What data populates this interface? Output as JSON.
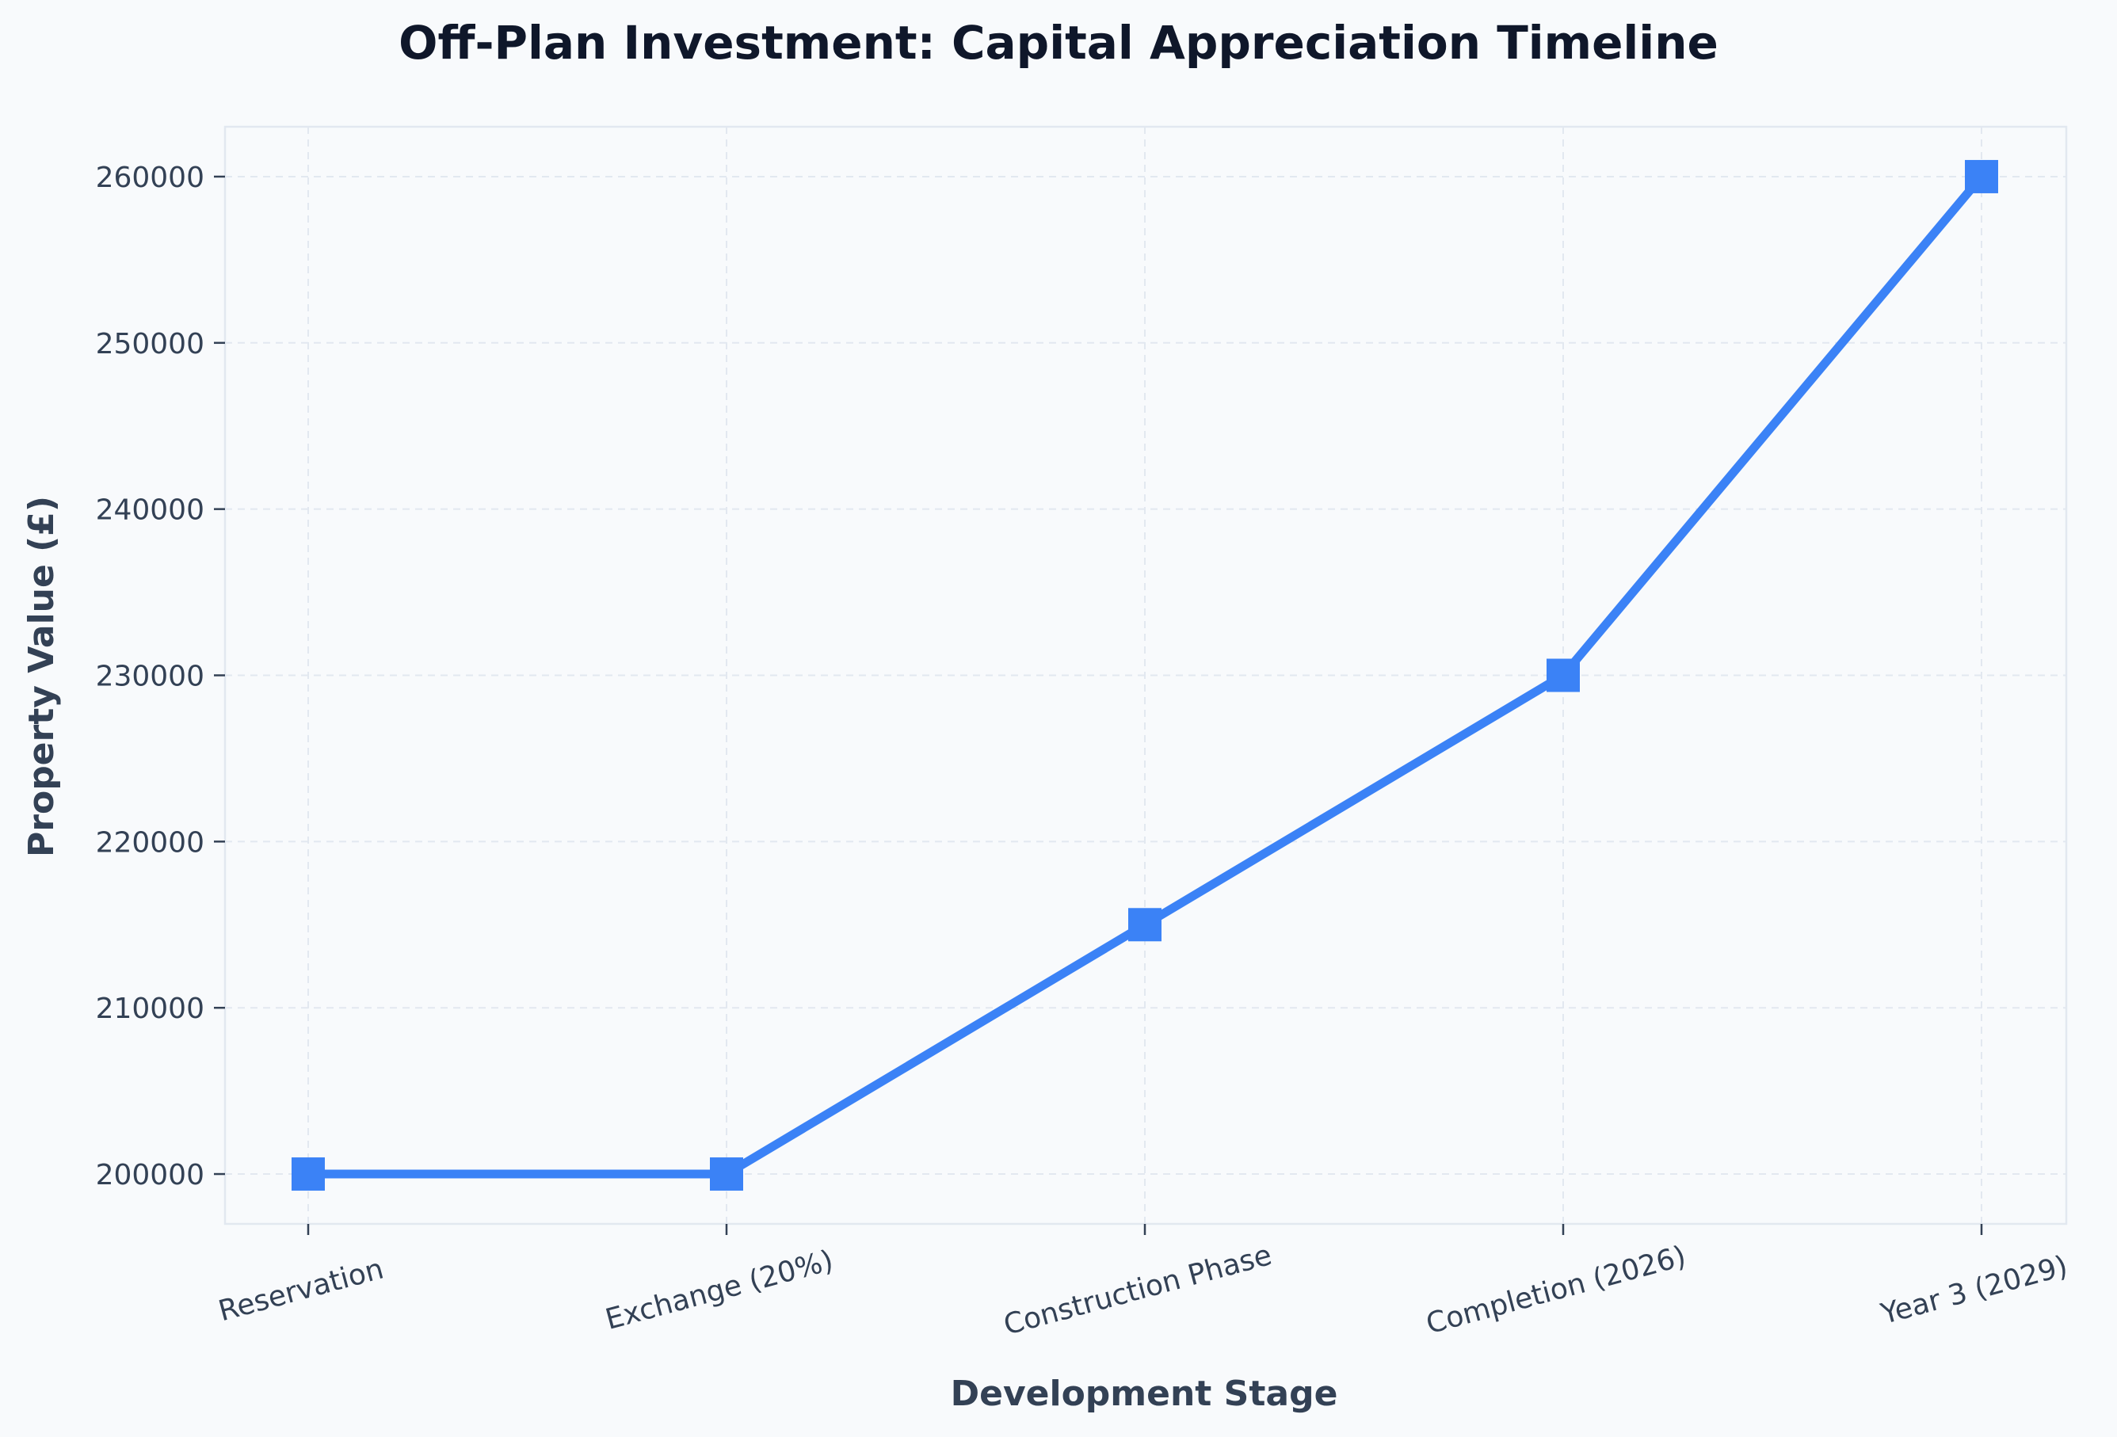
{
  "chart_data": {
    "type": "line",
    "title": "Off-Plan Investment: Capital Appreciation Timeline",
    "xlabel": "Development Stage",
    "ylabel": "Property Value (£)",
    "categories": [
      "Reservation",
      "Exchange (20%)",
      "Construction Phase",
      "Completion (2026)",
      "Year 3 (2029)"
    ],
    "values": [
      200000,
      200000,
      215000,
      230000,
      260000
    ],
    "yticks": [
      "200000",
      "210000",
      "220000",
      "230000",
      "240000",
      "250000",
      "260000"
    ],
    "ylim": [
      197000,
      263000
    ],
    "grid": true,
    "line_color": "#3b82f6",
    "marker": "square"
  }
}
